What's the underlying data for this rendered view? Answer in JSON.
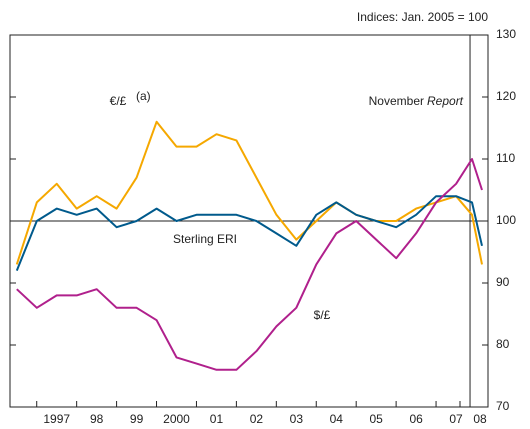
{
  "chart_data": {
    "type": "line",
    "subtitle": "Indices:  Jan. 2005 = 100",
    "x": [
      1996.5,
      1997,
      1997.5,
      1998,
      1998.5,
      1999,
      1999.5,
      2000,
      2000.5,
      2001,
      2001.5,
      2002,
      2002.5,
      2003,
      2003.5,
      2004,
      2004.5,
      2005,
      2005.5,
      2006,
      2006.5,
      2007,
      2007.5,
      2007.9,
      2008.15
    ],
    "series": [
      {
        "name": "€/£",
        "color": "#f5a800",
        "values": [
          93,
          103,
          106,
          102,
          104,
          102,
          107,
          116,
          112,
          112,
          114,
          113,
          107,
          101,
          97,
          100,
          103,
          101,
          100,
          100,
          102,
          103,
          104,
          101,
          93
        ]
      },
      {
        "name": "Sterling ERI",
        "color": "#005a8c",
        "values": [
          92,
          100,
          102,
          101,
          102,
          99,
          100,
          102,
          100,
          101,
          101,
          101,
          100,
          98,
          96,
          101,
          103,
          101,
          100,
          99,
          101,
          104,
          104,
          103,
          96
        ]
      },
      {
        "name": "$/£",
        "color": "#b0208c",
        "values": [
          89,
          86,
          88,
          88,
          89,
          86,
          86,
          84,
          78,
          77,
          76,
          76,
          79,
          83,
          86,
          93,
          98,
          100,
          97,
          94,
          98,
          103,
          106,
          110,
          105
        ]
      }
    ],
    "footnote_marker": "(a)",
    "annotations": [
      "November",
      "Report"
    ],
    "report_line": 2007.85,
    "reference_line": 100,
    "xlim": [
      1996.33,
      2008.3
    ],
    "xticks": [
      {
        "value": 1997.5,
        "label": "1997"
      },
      {
        "value": 1998.5,
        "label": "98"
      },
      {
        "value": 1999.5,
        "label": "99"
      },
      {
        "value": 2000.5,
        "label": "2000"
      },
      {
        "value": 2001.5,
        "label": "01"
      },
      {
        "value": 2002.5,
        "label": "02"
      },
      {
        "value": 2003.5,
        "label": "03"
      },
      {
        "value": 2004.5,
        "label": "04"
      },
      {
        "value": 2005.5,
        "label": "05"
      },
      {
        "value": 2006.5,
        "label": "06"
      },
      {
        "value": 2007.5,
        "label": "07"
      },
      {
        "value": 2008.1,
        "label": "08"
      }
    ],
    "ylim": [
      70,
      130
    ],
    "yticks": [
      70,
      80,
      90,
      100,
      110,
      120,
      130
    ]
  }
}
